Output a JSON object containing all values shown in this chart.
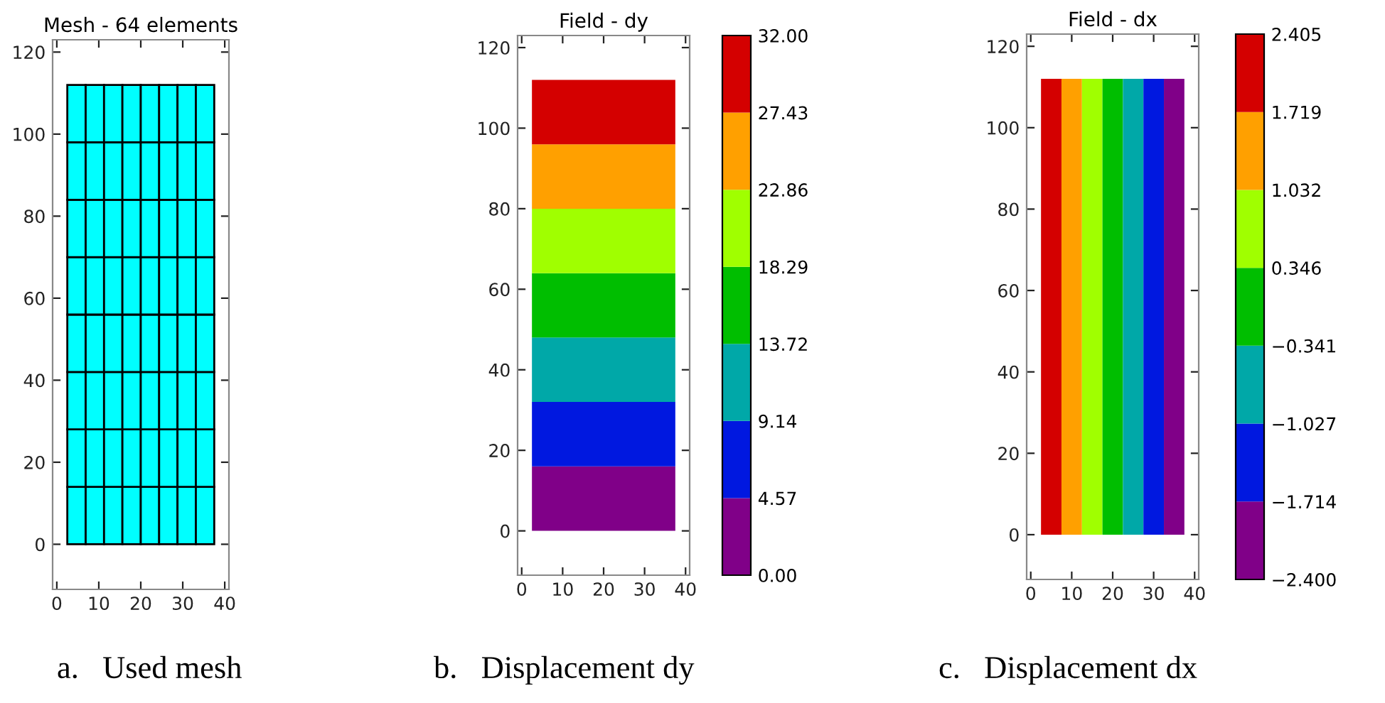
{
  "chart_data": [
    {
      "type": "bar",
      "stacked": true,
      "title": "Mesh - 64 elements",
      "x": [
        4.6875,
        9.0625,
        13.4375,
        17.8125,
        22.1875,
        26.5625,
        30.9375,
        35.3125
      ],
      "series": [
        {
          "color": "#00ffff",
          "values": [
            14,
            14,
            14,
            14,
            14,
            14,
            14,
            14
          ]
        },
        {
          "color": "#00ffff",
          "values": [
            14,
            14,
            14,
            14,
            14,
            14,
            14,
            14
          ]
        },
        {
          "color": "#00ffff",
          "values": [
            14,
            14,
            14,
            14,
            14,
            14,
            14,
            14
          ]
        },
        {
          "color": "#00ffff",
          "values": [
            14,
            14,
            14,
            14,
            14,
            14,
            14,
            14
          ]
        },
        {
          "color": "#00ffff",
          "values": [
            14,
            14,
            14,
            14,
            14,
            14,
            14,
            14
          ]
        },
        {
          "color": "#00ffff",
          "values": [
            14,
            14,
            14,
            14,
            14,
            14,
            14,
            14
          ]
        },
        {
          "color": "#00ffff",
          "values": [
            14,
            14,
            14,
            14,
            14,
            14,
            14,
            14
          ]
        },
        {
          "color": "#00ffff",
          "values": [
            14,
            14,
            14,
            14,
            14,
            14,
            14,
            14
          ]
        }
      ],
      "xlim": [
        -1,
        41
      ],
      "ylim": [
        -11,
        123
      ],
      "xticks": [
        0,
        10,
        20,
        30,
        40
      ],
      "yticks": [
        0,
        20,
        40,
        60,
        80,
        100,
        120
      ],
      "annotations": [
        "a.   Used mesh"
      ]
    },
    {
      "type": "area",
      "stacked": true,
      "title": "Field - dy",
      "x": [
        2.5,
        37.5
      ],
      "series": [
        {
          "color": "#800088",
          "values": [
            16,
            16
          ]
        },
        {
          "color": "#0018e0",
          "values": [
            16,
            16
          ]
        },
        {
          "color": "#00a8a8",
          "values": [
            16,
            16
          ]
        },
        {
          "color": "#00be00",
          "values": [
            16,
            16
          ]
        },
        {
          "color": "#a0ff00",
          "values": [
            16,
            16
          ]
        },
        {
          "color": "#ffa000",
          "values": [
            16,
            16
          ]
        },
        {
          "color": "#d40000",
          "values": [
            16,
            16
          ]
        }
      ],
      "xlim": [
        -1,
        41
      ],
      "ylim": [
        -11,
        123
      ],
      "xticks": [
        0,
        10,
        20,
        30,
        40
      ],
      "yticks": [
        0,
        20,
        40,
        60,
        80,
        100,
        120
      ],
      "clim": [
        0,
        32
      ],
      "cticks": [
        {
          "value": 0,
          "label": "0.00"
        },
        {
          "value": 4.57,
          "label": "4.57"
        },
        {
          "value": 9.14,
          "label": "9.14"
        },
        {
          "value": 13.72,
          "label": "13.72"
        },
        {
          "value": 18.29,
          "label": "18.29"
        },
        {
          "value": 22.86,
          "label": "22.86"
        },
        {
          "value": 27.43,
          "label": "27.43"
        },
        {
          "value": 32,
          "label": "32.00"
        }
      ],
      "colors": [
        "#800088",
        "#0018e0",
        "#00a8a8",
        "#00be00",
        "#a0ff00",
        "#ffa000",
        "#d40000"
      ],
      "annotations": [
        "b.   Displacement dy"
      ]
    },
    {
      "type": "bar",
      "title": "Field - dx",
      "series": [
        {
          "color": "#d40000",
          "x": [
            5
          ],
          "values": [
            112
          ]
        },
        {
          "color": "#ffa000",
          "x": [
            10
          ],
          "values": [
            112
          ]
        },
        {
          "color": "#a0ff00",
          "x": [
            15
          ],
          "values": [
            112
          ]
        },
        {
          "color": "#00be00",
          "x": [
            20
          ],
          "values": [
            112
          ]
        },
        {
          "color": "#00a8a8",
          "x": [
            25
          ],
          "values": [
            112
          ]
        },
        {
          "color": "#0018e0",
          "x": [
            30
          ],
          "values": [
            112
          ]
        },
        {
          "color": "#800088",
          "x": [
            35
          ],
          "values": [
            112
          ]
        }
      ],
      "xlim": [
        -1,
        41
      ],
      "ylim": [
        -11,
        123
      ],
      "xticks": [
        0,
        10,
        20,
        30,
        40
      ],
      "yticks": [
        0,
        20,
        40,
        60,
        80,
        100,
        120
      ],
      "clim": [
        -2.4,
        2.405
      ],
      "cticks": [
        {
          "value": -2.4,
          "label": "−2.400"
        },
        {
          "value": -1.714,
          "label": "−1.714"
        },
        {
          "value": -1.027,
          "label": "−1.027"
        },
        {
          "value": -0.341,
          "label": "−0.341"
        },
        {
          "value": 0.346,
          "label": "0.346"
        },
        {
          "value": 1.032,
          "label": "1.032"
        },
        {
          "value": 1.719,
          "label": "1.719"
        },
        {
          "value": 2.405,
          "label": "2.405"
        }
      ],
      "colors": [
        "#800088",
        "#0018e0",
        "#00a8a8",
        "#00be00",
        "#a0ff00",
        "#ffa000",
        "#d40000"
      ],
      "annotations": [
        "c.   Displacement dx"
      ]
    }
  ]
}
